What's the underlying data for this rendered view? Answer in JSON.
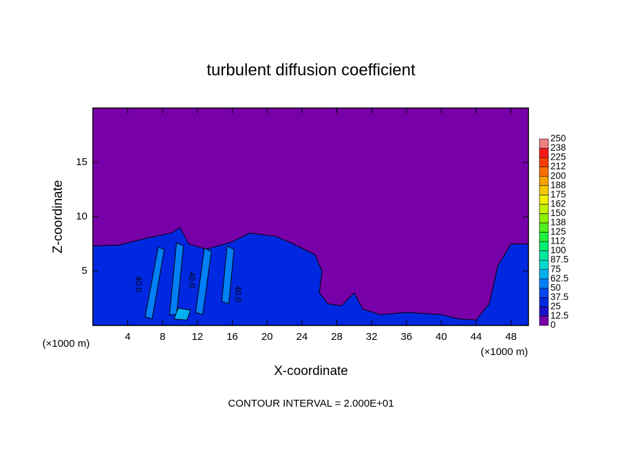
{
  "chart_data": {
    "type": "contour",
    "title": "turbulent diffusion coefficient",
    "x_label": "X-coordinate",
    "y_label": "Z-coordinate",
    "x_unit": "(×1000 m)",
    "footer": "CONTOUR INTERVAL = 2.000E+01",
    "xlim": [
      0,
      50
    ],
    "ylim": [
      0,
      20
    ],
    "xticks": [
      4,
      8,
      12,
      16,
      20,
      24,
      28,
      32,
      36,
      40,
      44,
      48
    ],
    "yticks": [
      5,
      10,
      15
    ],
    "background": {
      "value": 0,
      "color": "#7800a8"
    },
    "colorbar": {
      "levels": [
        0,
        12.5,
        25,
        37.5,
        50,
        62.5,
        75,
        87.5,
        100,
        112,
        125,
        138,
        150,
        162,
        175,
        188,
        200,
        212,
        225,
        238,
        250
      ],
      "colors": [
        "#7800a8",
        "#1c10c8",
        "#0028e0",
        "#0048f0",
        "#0080f8",
        "#00b0f0",
        "#00d8d0",
        "#00e8a0",
        "#00f070",
        "#20f040",
        "#50f020",
        "#90f000",
        "#c0f000",
        "#f0f000",
        "#f8c800",
        "#f8a000",
        "#f87000",
        "#f84000",
        "#f81818",
        "#f08080"
      ]
    },
    "regions": [
      {
        "value": 30,
        "color": "#0028e0",
        "x": [
          0,
          0,
          3,
          6,
          9,
          10,
          11,
          13,
          16,
          18,
          21,
          23,
          25.5,
          26.3,
          26,
          27,
          28.5,
          30,
          31,
          33,
          36,
          40,
          42,
          44,
          45.5,
          46.5,
          48,
          50,
          50
        ],
        "y": [
          0,
          7.3,
          7.4,
          8,
          8.5,
          9,
          7.5,
          7,
          7.7,
          8.5,
          8.2,
          7.5,
          6.5,
          5,
          3,
          2,
          1.8,
          3,
          1.5,
          1,
          1.2,
          1,
          0.6,
          0.5,
          2,
          5.5,
          7.5,
          7.5,
          0
        ]
      },
      {
        "value": 55,
        "color": "#0080f8",
        "x": [
          6,
          7.5,
          8.2,
          6.8
        ],
        "y": [
          0.8,
          7.2,
          7,
          0.6
        ]
      },
      {
        "value": 55,
        "color": "#0080f8",
        "x": [
          8.8,
          9.6,
          10.4,
          9.6
        ],
        "y": [
          1,
          7.6,
          7.3,
          1
        ]
      },
      {
        "value": 55,
        "color": "#0080f8",
        "x": [
          11.8,
          12.8,
          13.6,
          12.6
        ],
        "y": [
          1.2,
          7.1,
          6.8,
          1
        ]
      },
      {
        "value": 55,
        "color": "#0080f8",
        "x": [
          14.8,
          15.4,
          16.2,
          15.6
        ],
        "y": [
          2.2,
          7.3,
          7,
          2
        ]
      },
      {
        "value": 70,
        "color": "#00b0f0",
        "x": [
          9.3,
          9.8,
          11.2,
          10.8
        ],
        "y": [
          0.6,
          1.6,
          1.4,
          0.5
        ]
      }
    ],
    "contour_labels": [
      {
        "value": 40,
        "label": "40.0",
        "x": 5.2,
        "y": 3.8
      },
      {
        "value": 40,
        "label": "40.0",
        "x": 11.3,
        "y": 4.2
      },
      {
        "value": 40,
        "label": "40.0",
        "x": 16.6,
        "y": 2.9
      }
    ]
  }
}
